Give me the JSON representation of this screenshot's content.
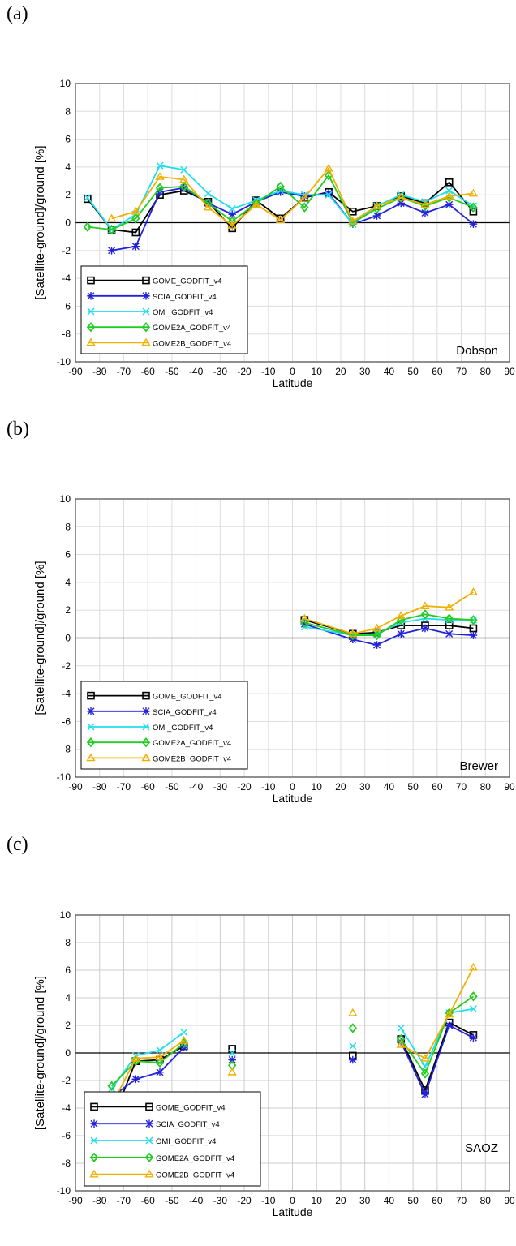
{
  "chart_data": [
    {
      "panel": "(a)",
      "type": "line",
      "station_label": "Dobson",
      "xlabel": "Latitude",
      "ylabel": "[Satellite-ground]/ground [%]",
      "xlim": [
        -90,
        90
      ],
      "ylim": [
        -10,
        10
      ],
      "xticks": [
        -90,
        -80,
        -70,
        -60,
        -50,
        -40,
        -30,
        -20,
        -10,
        0,
        10,
        20,
        30,
        40,
        50,
        60,
        70,
        80,
        90
      ],
      "yticks": [
        -10,
        -8,
        -6,
        -4,
        -2,
        0,
        2,
        4,
        6,
        8,
        10
      ],
      "grid": true,
      "legend_position": "lower-left",
      "series": [
        {
          "name": "GOME_GODFIT_v4",
          "color": "#000000",
          "marker": "square",
          "x": [
            -85,
            -75,
            -65,
            -55,
            -45,
            -35,
            -25,
            -15,
            -5,
            5,
            15,
            25,
            35,
            45,
            55,
            65,
            75
          ],
          "y": [
            1.7,
            -0.5,
            -0.7,
            2.0,
            2.3,
            1.5,
            -0.4,
            1.6,
            0.3,
            1.8,
            2.2,
            0.8,
            1.2,
            1.9,
            1.4,
            2.9,
            0.8
          ]
        },
        {
          "name": "SCIA_GODFIT_v4",
          "color": "#2222dd",
          "marker": "star",
          "x": [
            -75,
            -65,
            -55,
            -45,
            -35,
            -25,
            -15,
            -5,
            5,
            15,
            25,
            35,
            45,
            55,
            65,
            75
          ],
          "y": [
            -2.0,
            -1.7,
            2.2,
            2.5,
            1.4,
            0.6,
            1.5,
            2.2,
            1.9,
            2.1,
            -0.1,
            0.5,
            1.4,
            0.7,
            1.3,
            -0.1
          ]
        },
        {
          "name": "OMI_GODFIT_v4",
          "color": "#22ddee",
          "marker": "x",
          "x": [
            -85,
            -75,
            -65,
            -55,
            -45,
            -35,
            -25,
            -15,
            -5,
            5,
            15,
            25,
            35,
            45,
            55,
            65,
            75
          ],
          "y": [
            1.8,
            -0.5,
            0.6,
            4.1,
            3.8,
            2.1,
            1.0,
            1.6,
            2.3,
            2.0,
            2.0,
            -0.1,
            1.2,
            2.0,
            1.5,
            2.3,
            1.2
          ]
        },
        {
          "name": "GOME2A_GODFIT_v4",
          "color": "#22cc22",
          "marker": "diamond",
          "x": [
            -85,
            -75,
            -65,
            -55,
            -45,
            -35,
            -25,
            -15,
            -5,
            5,
            15,
            25,
            35,
            45,
            55,
            65,
            75
          ],
          "y": [
            -0.3,
            -0.5,
            0.3,
            2.5,
            2.6,
            1.4,
            0.1,
            1.4,
            2.6,
            1.1,
            3.4,
            0.0,
            1.0,
            1.8,
            1.2,
            1.8,
            1.1
          ]
        },
        {
          "name": "GOME2B_GODFIT_v4",
          "color": "#f0b000",
          "marker": "triangle",
          "x": [
            -75,
            -65,
            -55,
            -45,
            -35,
            -25,
            -15,
            -5,
            5,
            15,
            25,
            35,
            45,
            55,
            65,
            75
          ],
          "y": [
            0.3,
            0.8,
            3.3,
            3.1,
            1.1,
            -0.2,
            1.3,
            0.2,
            1.8,
            3.9,
            0.1,
            1.2,
            1.8,
            1.3,
            1.9,
            2.1
          ]
        }
      ]
    },
    {
      "panel": "(b)",
      "type": "line",
      "station_label": "Brewer",
      "xlabel": "Latitude",
      "ylabel": "[Satellite-ground]/ground [%]",
      "xlim": [
        -90,
        90
      ],
      "ylim": [
        -10,
        10
      ],
      "xticks": [
        -90,
        -80,
        -70,
        -60,
        -50,
        -40,
        -30,
        -20,
        -10,
        0,
        10,
        20,
        30,
        40,
        50,
        60,
        70,
        80,
        90
      ],
      "yticks": [
        -10,
        -8,
        -6,
        -4,
        -2,
        0,
        2,
        4,
        6,
        8,
        10
      ],
      "grid": true,
      "legend_position": "lower-left",
      "series": [
        {
          "name": "GOME_GODFIT_v4",
          "color": "#000000",
          "marker": "square",
          "x": [
            5,
            25,
            35,
            45,
            55,
            65,
            75
          ],
          "y": [
            1.3,
            0.3,
            0.4,
            0.9,
            0.9,
            0.9,
            0.7
          ]
        },
        {
          "name": "SCIA_GODFIT_v4",
          "color": "#2222dd",
          "marker": "star",
          "x": [
            5,
            25,
            35,
            45,
            55,
            65,
            75
          ],
          "y": [
            1.0,
            -0.1,
            -0.5,
            0.3,
            0.7,
            0.3,
            0.2
          ]
        },
        {
          "name": "OMI_GODFIT_v4",
          "color": "#22ddee",
          "marker": "x",
          "x": [
            5,
            25,
            35,
            45,
            55,
            65,
            75
          ],
          "y": [
            0.8,
            0.2,
            0.3,
            1.1,
            1.4,
            1.3,
            1.3
          ]
        },
        {
          "name": "GOME2A_GODFIT_v4",
          "color": "#22cc22",
          "marker": "diamond",
          "x": [
            5,
            25,
            35,
            45,
            55,
            65,
            75
          ],
          "y": [
            1.1,
            0.2,
            0.2,
            1.3,
            1.7,
            1.4,
            1.3
          ]
        },
        {
          "name": "GOME2B_GODFIT_v4",
          "color": "#f0b000",
          "marker": "triangle",
          "x": [
            5,
            25,
            35,
            45,
            55,
            65,
            75
          ],
          "y": [
            1.4,
            0.3,
            0.7,
            1.6,
            2.3,
            2.2,
            3.3
          ]
        }
      ]
    },
    {
      "panel": "(c)",
      "type": "line",
      "station_label": "SAOZ",
      "xlabel": "Latitude",
      "ylabel": "[Satellite-ground]/ground [%]",
      "xlim": [
        -90,
        90
      ],
      "ylim": [
        -10,
        10
      ],
      "xticks": [
        -90,
        -80,
        -70,
        -60,
        -50,
        -40,
        -30,
        -20,
        -10,
        0,
        10,
        20,
        30,
        40,
        50,
        60,
        70,
        80,
        90
      ],
      "yticks": [
        -10,
        -8,
        -6,
        -4,
        -2,
        0,
        2,
        4,
        6,
        8,
        10
      ],
      "grid": true,
      "legend_position": "lower-left",
      "series": [
        {
          "name": "GOME_GODFIT_v4",
          "color": "#000000",
          "marker": "square",
          "x": [
            -75,
            -65,
            -55,
            -45,
            -25,
            25,
            45,
            55,
            65,
            75
          ],
          "y": [
            -5.0,
            -0.6,
            -0.5,
            0.5,
            0.3,
            -0.2,
            1.0,
            -2.7,
            2.2,
            1.3
          ],
          "segments": [
            [
              0,
              3
            ],
            [
              6,
              9
            ]
          ]
        },
        {
          "name": "SCIA_GODFIT_v4",
          "color": "#2222dd",
          "marker": "star",
          "x": [
            -75,
            -65,
            -55,
            -45,
            -25,
            25,
            45,
            55,
            65,
            75
          ],
          "y": [
            -3.2,
            -1.9,
            -1.4,
            0.4,
            -0.5,
            -0.5,
            0.8,
            -3.0,
            2.0,
            1.1
          ],
          "segments": [
            [
              0,
              3
            ],
            [
              6,
              9
            ]
          ]
        },
        {
          "name": "OMI_GODFIT_v4",
          "color": "#22ddee",
          "marker": "x",
          "x": [
            -75,
            -65,
            -55,
            -45,
            -25,
            25,
            45,
            55,
            65,
            75
          ],
          "y": [
            -2.6,
            -0.2,
            0.2,
            1.5,
            0.0,
            0.5,
            1.8,
            -1.0,
            2.9,
            3.2
          ],
          "segments": [
            [
              0,
              3
            ],
            [
              6,
              9
            ]
          ]
        },
        {
          "name": "GOME2A_GODFIT_v4",
          "color": "#22cc22",
          "marker": "diamond",
          "x": [
            -75,
            -65,
            -55,
            -45,
            -25,
            25,
            45,
            55,
            65,
            75
          ],
          "y": [
            -2.4,
            -0.6,
            -0.7,
            0.7,
            -0.9,
            1.8,
            1.0,
            -1.5,
            2.9,
            4.1
          ],
          "segments": [
            [
              0,
              3
            ],
            [
              6,
              9
            ]
          ]
        },
        {
          "name": "GOME2B_GODFIT_v4",
          "color": "#f0b000",
          "marker": "triangle",
          "x": [
            -75,
            -65,
            -55,
            -45,
            -25,
            25,
            45,
            55,
            65,
            75
          ],
          "y": [
            -3.8,
            -0.4,
            -0.3,
            0.9,
            -1.4,
            2.9,
            0.6,
            -0.4,
            2.8,
            6.2
          ],
          "segments": [
            [
              0,
              3
            ],
            [
              6,
              9
            ]
          ]
        }
      ]
    }
  ]
}
